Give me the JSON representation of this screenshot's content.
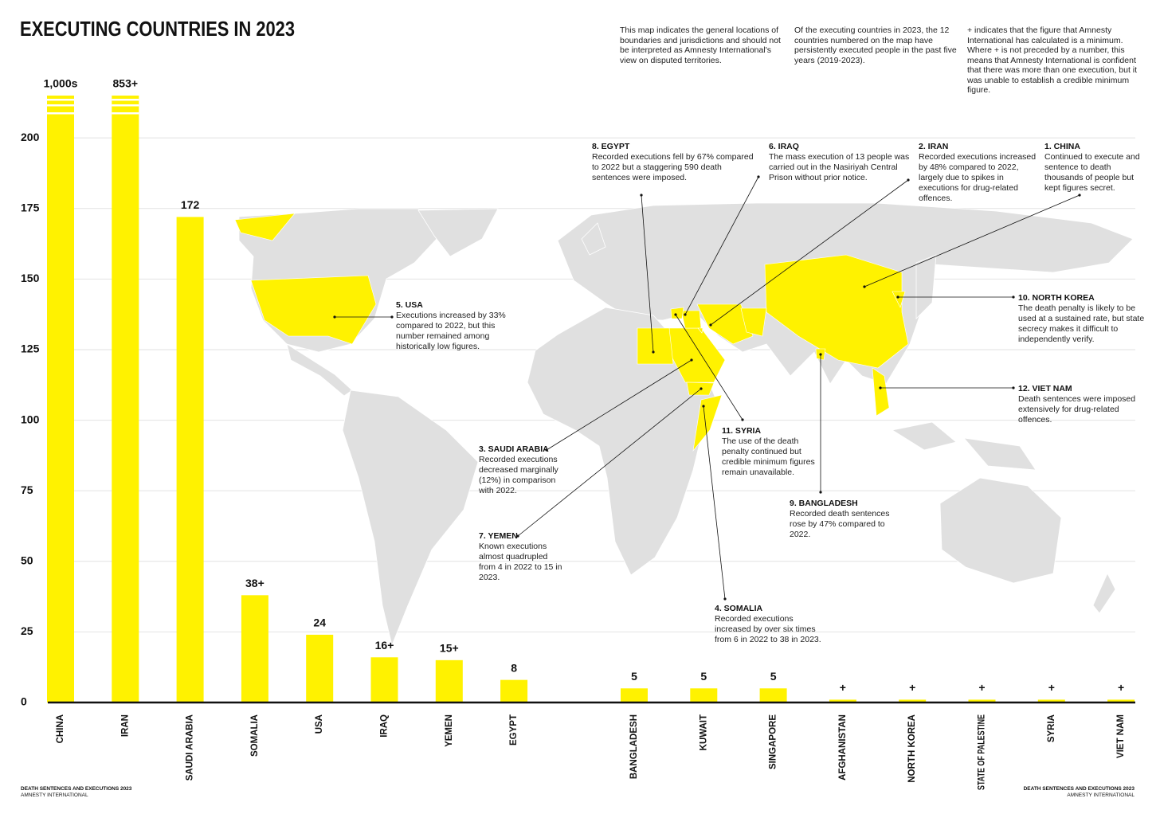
{
  "chart_data": {
    "type": "bar",
    "title": "EXECUTING COUNTRIES IN 2023",
    "categories": [
      "CHINA",
      "IRAN",
      "SAUDI ARABIA",
      "SOMALIA",
      "USA",
      "IRAQ",
      "YEMEN",
      "EGYPT",
      "BANGLADESH",
      "KUWAIT",
      "SINGAPORE",
      "AFGHANISTAN",
      "NORTH KOREA",
      "STATE OF PALESTINE",
      "SYRIA",
      "VIET NAM"
    ],
    "values": [
      1000,
      853,
      172,
      38,
      24,
      16,
      15,
      8,
      5,
      5,
      5,
      1,
      1,
      1,
      1,
      1
    ],
    "value_labels": [
      "1,000s",
      "853+",
      "172",
      "38+",
      "24",
      "16+",
      "15+",
      "8",
      "5",
      "5",
      "5",
      "+",
      "+",
      "+",
      "+",
      "+"
    ],
    "color": "#fff200",
    "ylim": [
      0,
      215
    ],
    "yticks": [
      0,
      25,
      50,
      75,
      100,
      125,
      150,
      175,
      200
    ],
    "grid": true,
    "axis_break": true
  },
  "notes": [
    "This map indicates the general locations of boundaries and jurisdictions and should not be interpreted as Amnesty International's view on disputed territories.",
    "Of the executing countries in 2023, the 12 countries numbered on the map have persistently executed people in the past five years (2019-2023).",
    "+ indicates that the figure that Amnesty International has calculated is a minimum. Where + is not preceded by a number, this means that Amnesty International is confident that there was more than one execution, but it was unable to establish a credible minimum figure."
  ],
  "annotations": [
    {
      "title": "8. EGYPT",
      "text": "Recorded executions fell by 67% compared to 2022 but a staggering 590 death sentences were imposed."
    },
    {
      "title": "6. IRAQ",
      "text": "The mass execution of 13 people was carried out in the Nasiriyah Central Prison without prior notice."
    },
    {
      "title": "2. IRAN",
      "text": "Recorded executions increased by 48% compared to 2022, largely due to spikes in executions for drug-related offences."
    },
    {
      "title": "1. CHINA",
      "text": "Continued to execute and sentence to death thousands of people but kept figures secret."
    },
    {
      "title": "10. NORTH KOREA",
      "text": "The death penalty is likely to be used at a sustained rate, but state secrecy makes it difficult to independently verify."
    },
    {
      "title": "5. USA",
      "text": "Executions increased by 33% compared to 2022, but this number remained among historically low figures."
    },
    {
      "title": "12. VIET NAM",
      "text": "Death sentences were imposed extensively for drug-related offences."
    },
    {
      "title": "3. SAUDI ARABIA",
      "text": "Recorded executions decreased marginally (12%) in comparison with 2022."
    },
    {
      "title": "11. SYRIA",
      "text": "The use of the death penalty continued but credible minimum figures remain unavailable."
    },
    {
      "title": "9. BANGLADESH",
      "text": "Recorded death sentences rose by 47% compared to 2022."
    },
    {
      "title": "7. YEMEN",
      "text": "Known executions almost quadrupled from 4 in 2022 to 15 in 2023."
    },
    {
      "title": "4. SOMALIA",
      "text": "Recorded executions increased by over six times from 6 in 2022 to 38 in 2023."
    }
  ],
  "footer": [
    {
      "title": "DEATH SENTENCES AND EXECUTIONS 2023",
      "subtitle": "AMNESTY INTERNATIONAL"
    },
    {
      "title": "DEATH SENTENCES AND EXECUTIONS 2023",
      "subtitle": "AMNESTY INTERNATIONAL"
    }
  ]
}
